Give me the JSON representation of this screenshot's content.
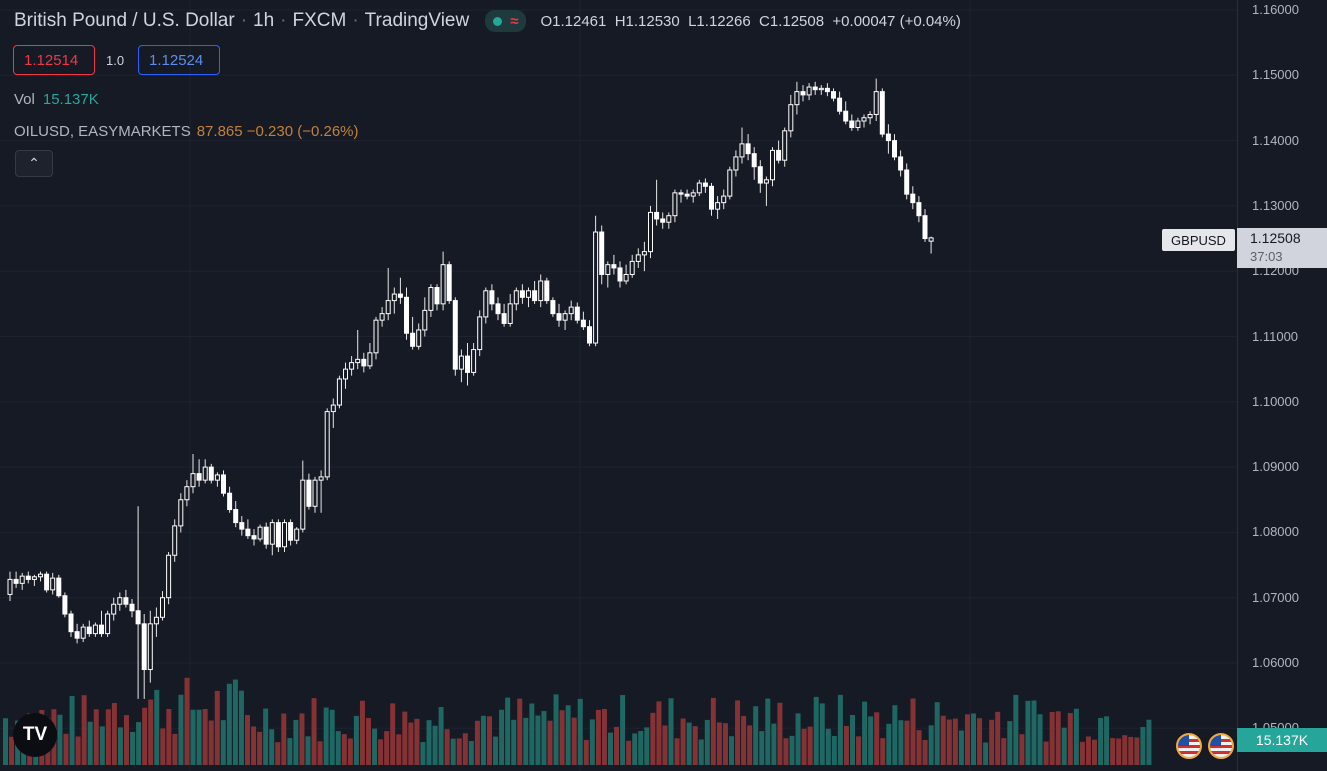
{
  "header": {
    "symbol_name": "British Pound / U.S. Dollar",
    "interval": "1h",
    "exchange": "FXCM",
    "source": "TradingView",
    "ohlc": {
      "open": "O1.12461",
      "high": "H1.12530",
      "low": "L1.12266",
      "close": "C1.12508",
      "change": "+0.00047 (+0.04%)"
    }
  },
  "quote": {
    "bid": "1.12514",
    "spread": "1.0",
    "ask": "1.12524"
  },
  "indicators": {
    "vol_label": "Vol",
    "vol_value": "15.137K",
    "overlay_name": "OILUSD, EASYMARKETS",
    "overlay_value": "87.865 −0.230 (−0.26%)"
  },
  "price_scale": {
    "ticks": [
      "1.16000",
      "1.15000",
      "1.14000",
      "1.13000",
      "1.12000",
      "1.11000",
      "1.10000",
      "1.09000",
      "1.08000",
      "1.07000",
      "1.06000",
      "1.05000"
    ]
  },
  "last": {
    "symbol": "GBPUSD",
    "price": "1.12508",
    "countdown": "37:03",
    "volume": "15.137K"
  },
  "colors": {
    "background": "#161a25",
    "up_volume": "#26a69a",
    "down_volume": "#ef5350",
    "candle": "#ffffff",
    "bid": "#f23645",
    "ask": "#2962ff"
  },
  "icons": [
    "status-dot-icon",
    "wave-icon",
    "chevron-up-icon",
    "tradingview-logo-icon",
    "us-flag-icon"
  ],
  "chart_data": {
    "type": "candlestick",
    "ylim": [
      1.045,
      1.162
    ],
    "candles": [
      [
        1.0705,
        1.074,
        1.0695,
        1.0728
      ],
      [
        1.0728,
        1.074,
        1.0715,
        1.0722
      ],
      [
        1.0722,
        1.0738,
        1.0712,
        1.0733
      ],
      [
        1.0733,
        1.074,
        1.0722,
        1.0728
      ],
      [
        1.0728,
        1.0735,
        1.0718,
        1.0732
      ],
      [
        1.0732,
        1.074,
        1.0725,
        1.0736
      ],
      [
        1.0736,
        1.074,
        1.0708,
        1.0712
      ],
      [
        1.0712,
        1.0738,
        1.0705,
        1.073
      ],
      [
        1.073,
        1.0735,
        1.07,
        1.0703
      ],
      [
        1.0703,
        1.0708,
        1.067,
        1.0675
      ],
      [
        1.0675,
        1.068,
        1.064,
        1.0648
      ],
      [
        1.0648,
        1.066,
        1.063,
        1.0638
      ],
      [
        1.0638,
        1.066,
        1.0632,
        1.0655
      ],
      [
        1.0655,
        1.0665,
        1.064,
        1.0645
      ],
      [
        1.0645,
        1.0662,
        1.064,
        1.0658
      ],
      [
        1.0658,
        1.068,
        1.064,
        1.0645
      ],
      [
        1.0645,
        1.068,
        1.064,
        1.0675
      ],
      [
        1.0675,
        1.07,
        1.0665,
        1.069
      ],
      [
        1.069,
        1.0708,
        1.068,
        1.07
      ],
      [
        1.07,
        1.0712,
        1.0685,
        1.069
      ],
      [
        1.069,
        1.0698,
        1.067,
        1.068
      ],
      [
        1.068,
        1.084,
        1.0545,
        1.066
      ],
      [
        1.066,
        1.0675,
        1.0545,
        1.059
      ],
      [
        1.059,
        1.068,
        1.057,
        1.066
      ],
      [
        1.066,
        1.0685,
        1.064,
        1.067
      ],
      [
        1.067,
        1.071,
        1.0665,
        1.07
      ],
      [
        1.07,
        1.077,
        1.069,
        1.0765
      ],
      [
        1.0765,
        1.082,
        1.0755,
        1.081
      ],
      [
        1.081,
        1.086,
        1.08,
        1.085
      ],
      [
        1.085,
        1.088,
        1.084,
        1.087
      ],
      [
        1.087,
        1.092,
        1.086,
        1.089
      ],
      [
        1.089,
        1.0912,
        1.087,
        1.088
      ],
      [
        1.088,
        1.0912,
        1.0875,
        1.09
      ],
      [
        1.09,
        1.0905,
        1.0875,
        1.088
      ],
      [
        1.088,
        1.0892,
        1.087,
        1.0888
      ],
      [
        1.0888,
        1.0895,
        1.0855,
        1.086
      ],
      [
        1.086,
        1.087,
        1.083,
        1.0835
      ],
      [
        1.0835,
        1.0848,
        1.0808,
        1.0815
      ],
      [
        1.0815,
        1.0825,
        1.0795,
        1.0805
      ],
      [
        1.0805,
        1.082,
        1.079,
        1.0795
      ],
      [
        1.0795,
        1.0805,
        1.078,
        1.079
      ],
      [
        1.079,
        1.0812,
        1.0786,
        1.0808
      ],
      [
        1.0808,
        1.0815,
        1.0775,
        1.0782
      ],
      [
        1.0782,
        1.082,
        1.0765,
        1.0815
      ],
      [
        1.0815,
        1.082,
        1.077,
        1.0778
      ],
      [
        1.0778,
        1.082,
        1.077,
        1.0815
      ],
      [
        1.0815,
        1.082,
        1.078,
        1.0788
      ],
      [
        1.0788,
        1.0808,
        1.0782,
        1.0805
      ],
      [
        1.0805,
        1.091,
        1.08,
        1.088
      ],
      [
        1.088,
        1.089,
        1.0835,
        1.084
      ],
      [
        1.084,
        1.0885,
        1.083,
        1.088
      ],
      [
        1.088,
        1.0895,
        1.083,
        1.0885
      ],
      [
        1.0885,
        1.099,
        1.088,
        1.0985
      ],
      [
        1.0985,
        1.1005,
        1.096,
        1.0995
      ],
      [
        1.0995,
        1.104,
        1.099,
        1.1035
      ],
      [
        1.1035,
        1.106,
        1.102,
        1.105
      ],
      [
        1.105,
        1.107,
        1.104,
        1.106
      ],
      [
        1.106,
        1.111,
        1.105,
        1.1065
      ],
      [
        1.1065,
        1.1075,
        1.1045,
        1.1055
      ],
      [
        1.1055,
        1.109,
        1.105,
        1.1075
      ],
      [
        1.1075,
        1.113,
        1.1065,
        1.1125
      ],
      [
        1.1125,
        1.1145,
        1.1115,
        1.1135
      ],
      [
        1.1135,
        1.1205,
        1.1125,
        1.1155
      ],
      [
        1.1155,
        1.1175,
        1.1135,
        1.1165
      ],
      [
        1.1165,
        1.119,
        1.115,
        1.116
      ],
      [
        1.116,
        1.1175,
        1.1095,
        1.1105
      ],
      [
        1.1105,
        1.113,
        1.108,
        1.1085
      ],
      [
        1.1085,
        1.112,
        1.108,
        1.111
      ],
      [
        1.111,
        1.116,
        1.11,
        1.114
      ],
      [
        1.114,
        1.118,
        1.113,
        1.1175
      ],
      [
        1.1175,
        1.118,
        1.114,
        1.115
      ],
      [
        1.115,
        1.123,
        1.114,
        1.121
      ],
      [
        1.121,
        1.1215,
        1.115,
        1.1155
      ],
      [
        1.1155,
        1.116,
        1.104,
        1.105
      ],
      [
        1.105,
        1.108,
        1.103,
        1.107
      ],
      [
        1.107,
        1.109,
        1.1025,
        1.1045
      ],
      [
        1.1045,
        1.109,
        1.104,
        1.108
      ],
      [
        1.108,
        1.114,
        1.107,
        1.113
      ],
      [
        1.113,
        1.1175,
        1.112,
        1.117
      ],
      [
        1.117,
        1.118,
        1.114,
        1.115
      ],
      [
        1.115,
        1.116,
        1.1125,
        1.1135
      ],
      [
        1.1135,
        1.115,
        1.1115,
        1.112
      ],
      [
        1.112,
        1.1165,
        1.1115,
        1.115
      ],
      [
        1.115,
        1.1175,
        1.114,
        1.117
      ],
      [
        1.117,
        1.118,
        1.115,
        1.116
      ],
      [
        1.116,
        1.1175,
        1.1145,
        1.117
      ],
      [
        1.117,
        1.1185,
        1.115,
        1.1155
      ],
      [
        1.1155,
        1.1195,
        1.1145,
        1.1185
      ],
      [
        1.1185,
        1.119,
        1.115,
        1.1155
      ],
      [
        1.1155,
        1.116,
        1.113,
        1.1135
      ],
      [
        1.1135,
        1.115,
        1.1115,
        1.1125
      ],
      [
        1.1125,
        1.114,
        1.111,
        1.1135
      ],
      [
        1.1135,
        1.1155,
        1.1125,
        1.1145
      ],
      [
        1.1145,
        1.1152,
        1.112,
        1.1125
      ],
      [
        1.1125,
        1.1138,
        1.111,
        1.1115
      ],
      [
        1.1115,
        1.1125,
        1.1085,
        1.109
      ],
      [
        1.109,
        1.1285,
        1.1085,
        1.126
      ],
      [
        1.126,
        1.127,
        1.118,
        1.1195
      ],
      [
        1.1195,
        1.1215,
        1.1175,
        1.121
      ],
      [
        1.121,
        1.1225,
        1.1195,
        1.1205
      ],
      [
        1.1205,
        1.1215,
        1.1175,
        1.1185
      ],
      [
        1.1185,
        1.121,
        1.118,
        1.1195
      ],
      [
        1.1195,
        1.1225,
        1.119,
        1.1215
      ],
      [
        1.1215,
        1.1235,
        1.1205,
        1.1225
      ],
      [
        1.1225,
        1.1245,
        1.12,
        1.123
      ],
      [
        1.123,
        1.13,
        1.122,
        1.129
      ],
      [
        1.129,
        1.134,
        1.127,
        1.128
      ],
      [
        1.128,
        1.129,
        1.1265,
        1.1275
      ],
      [
        1.1275,
        1.129,
        1.1265,
        1.1285
      ],
      [
        1.1285,
        1.1325,
        1.1275,
        1.132
      ],
      [
        1.132,
        1.1325,
        1.1305,
        1.1318
      ],
      [
        1.1318,
        1.1325,
        1.131,
        1.1315
      ],
      [
        1.1315,
        1.1325,
        1.1305,
        1.132
      ],
      [
        1.132,
        1.134,
        1.1315,
        1.1335
      ],
      [
        1.1335,
        1.1342,
        1.132,
        1.133
      ],
      [
        1.133,
        1.1335,
        1.1285,
        1.1295
      ],
      [
        1.1295,
        1.1315,
        1.128,
        1.1305
      ],
      [
        1.1305,
        1.1325,
        1.1295,
        1.1315
      ],
      [
        1.1315,
        1.136,
        1.131,
        1.1355
      ],
      [
        1.1355,
        1.1385,
        1.1345,
        1.1375
      ],
      [
        1.1375,
        1.142,
        1.1365,
        1.1395
      ],
      [
        1.1395,
        1.141,
        1.137,
        1.138
      ],
      [
        1.138,
        1.139,
        1.134,
        1.136
      ],
      [
        1.136,
        1.137,
        1.132,
        1.1335
      ],
      [
        1.1335,
        1.1345,
        1.13,
        1.134
      ],
      [
        1.134,
        1.139,
        1.133,
        1.1385
      ],
      [
        1.1385,
        1.14,
        1.1365,
        1.137
      ],
      [
        1.137,
        1.142,
        1.136,
        1.1415
      ],
      [
        1.1415,
        1.147,
        1.1405,
        1.1455
      ],
      [
        1.1455,
        1.149,
        1.144,
        1.1475
      ],
      [
        1.1475,
        1.1485,
        1.146,
        1.147
      ],
      [
        1.147,
        1.1488,
        1.1462,
        1.1482
      ],
      [
        1.1482,
        1.149,
        1.147,
        1.1478
      ],
      [
        1.1478,
        1.1485,
        1.147,
        1.148
      ],
      [
        1.148,
        1.1488,
        1.1468,
        1.1475
      ],
      [
        1.1475,
        1.148,
        1.146,
        1.1465
      ],
      [
        1.1465,
        1.1475,
        1.144,
        1.1445
      ],
      [
        1.1445,
        1.146,
        1.1425,
        1.143
      ],
      [
        1.143,
        1.144,
        1.1415,
        1.142
      ],
      [
        1.142,
        1.1435,
        1.1415,
        1.143
      ],
      [
        1.143,
        1.144,
        1.142,
        1.1435
      ],
      [
        1.1435,
        1.1445,
        1.1425,
        1.144
      ],
      [
        1.144,
        1.1495,
        1.143,
        1.1475
      ],
      [
        1.1475,
        1.148,
        1.1405,
        1.141
      ],
      [
        1.141,
        1.1425,
        1.138,
        1.14
      ],
      [
        1.14,
        1.141,
        1.137,
        1.1375
      ],
      [
        1.1375,
        1.1385,
        1.1345,
        1.1355
      ],
      [
        1.1355,
        1.1365,
        1.131,
        1.1318
      ],
      [
        1.1318,
        1.133,
        1.1295,
        1.1305
      ],
      [
        1.1305,
        1.1315,
        1.1275,
        1.1285
      ],
      [
        1.1285,
        1.1295,
        1.1245,
        1.125
      ],
      [
        1.1246,
        1.1253,
        1.1227,
        1.1251
      ]
    ],
    "volume_bar_count": 190,
    "volume_axis_max": 1.0
  }
}
